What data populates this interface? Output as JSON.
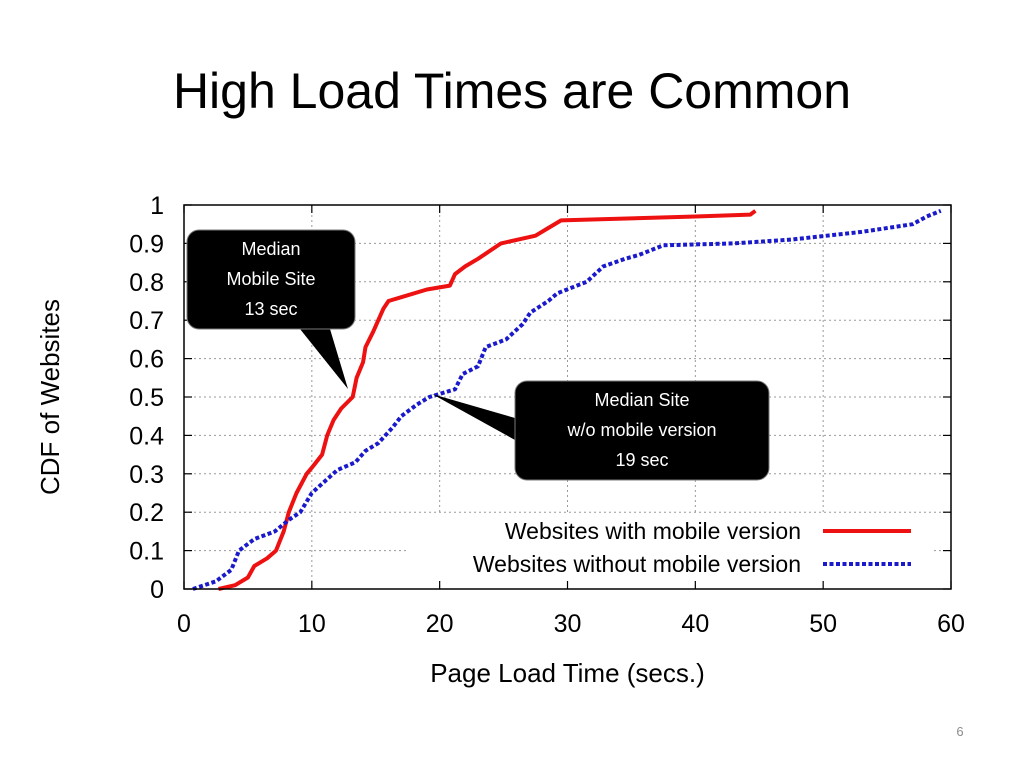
{
  "slide": {
    "title": "High Load Times are Common",
    "slide_number": "6"
  },
  "chart_data": {
    "type": "line",
    "xlabel": "Page Load Time (secs.)",
    "ylabel": "CDF of Websites",
    "xlim": [
      0,
      60
    ],
    "ylim": [
      0,
      1
    ],
    "x_ticks": [
      "0",
      "10",
      "20",
      "30",
      "40",
      "50",
      "60"
    ],
    "y_ticks": [
      "0",
      "0.1",
      "0.2",
      "0.3",
      "0.4",
      "0.5",
      "0.6",
      "0.7",
      "0.8",
      "0.9",
      "1"
    ],
    "grid": true,
    "legend_position": "lower-right",
    "series": [
      {
        "name": "Websites with mobile version",
        "color": "#ee1111",
        "style": "solid",
        "points": [
          [
            2.7,
            0
          ],
          [
            4,
            0.01
          ],
          [
            5,
            0.03
          ],
          [
            5.5,
            0.06
          ],
          [
            6.5,
            0.08
          ],
          [
            7.2,
            0.1
          ],
          [
            7.8,
            0.15
          ],
          [
            8.2,
            0.2
          ],
          [
            8.8,
            0.25
          ],
          [
            9.6,
            0.3
          ],
          [
            10.1,
            0.32
          ],
          [
            10.8,
            0.35
          ],
          [
            11.2,
            0.4
          ],
          [
            11.7,
            0.44
          ],
          [
            12.3,
            0.47
          ],
          [
            13.2,
            0.5
          ],
          [
            13.5,
            0.55
          ],
          [
            14,
            0.59
          ],
          [
            14.2,
            0.63
          ],
          [
            14.8,
            0.67
          ],
          [
            15.2,
            0.7
          ],
          [
            15.6,
            0.73
          ],
          [
            16,
            0.75
          ],
          [
            17,
            0.76
          ],
          [
            19,
            0.78
          ],
          [
            20.8,
            0.79
          ],
          [
            21.2,
            0.82
          ],
          [
            22,
            0.84
          ],
          [
            23,
            0.86
          ],
          [
            24.8,
            0.9
          ],
          [
            27.5,
            0.92
          ],
          [
            28.5,
            0.94
          ],
          [
            29.5,
            0.96
          ],
          [
            35,
            0.965
          ],
          [
            40,
            0.97
          ],
          [
            44.3,
            0.975
          ],
          [
            44.7,
            0.985
          ]
        ]
      },
      {
        "name": "Websites without mobile version",
        "color": "#1a1acc",
        "style": "dotted",
        "points": [
          [
            0.7,
            0
          ],
          [
            2.5,
            0.02
          ],
          [
            3.7,
            0.05
          ],
          [
            4.3,
            0.1
          ],
          [
            5.5,
            0.13
          ],
          [
            7.1,
            0.15
          ],
          [
            8.2,
            0.18
          ],
          [
            9.1,
            0.2
          ],
          [
            10,
            0.25
          ],
          [
            11,
            0.28
          ],
          [
            12,
            0.31
          ],
          [
            13.4,
            0.33
          ],
          [
            14.2,
            0.36
          ],
          [
            15.2,
            0.38
          ],
          [
            16.3,
            0.42
          ],
          [
            17,
            0.45
          ],
          [
            18.2,
            0.48
          ],
          [
            19.2,
            0.5
          ],
          [
            21.2,
            0.52
          ],
          [
            21.8,
            0.56
          ],
          [
            23,
            0.58
          ],
          [
            23.6,
            0.63
          ],
          [
            25.2,
            0.65
          ],
          [
            26.5,
            0.69
          ],
          [
            27.1,
            0.72
          ],
          [
            28.5,
            0.75
          ],
          [
            29.2,
            0.77
          ],
          [
            31.5,
            0.8
          ],
          [
            32.8,
            0.84
          ],
          [
            34.5,
            0.86
          ],
          [
            35.6,
            0.87
          ],
          [
            37.5,
            0.895
          ],
          [
            43,
            0.9
          ],
          [
            47.5,
            0.91
          ],
          [
            53,
            0.93
          ],
          [
            57,
            0.95
          ],
          [
            58.1,
            0.97
          ],
          [
            59.2,
            0.985
          ]
        ]
      }
    ],
    "annotations": [
      {
        "lines": [
          "Median",
          "Mobile Site",
          "13 sec"
        ],
        "x": 13,
        "y": 0.5
      },
      {
        "lines": [
          "Median Site",
          "w/o mobile version",
          "19 sec"
        ],
        "x": 19,
        "y": 0.5
      }
    ]
  }
}
